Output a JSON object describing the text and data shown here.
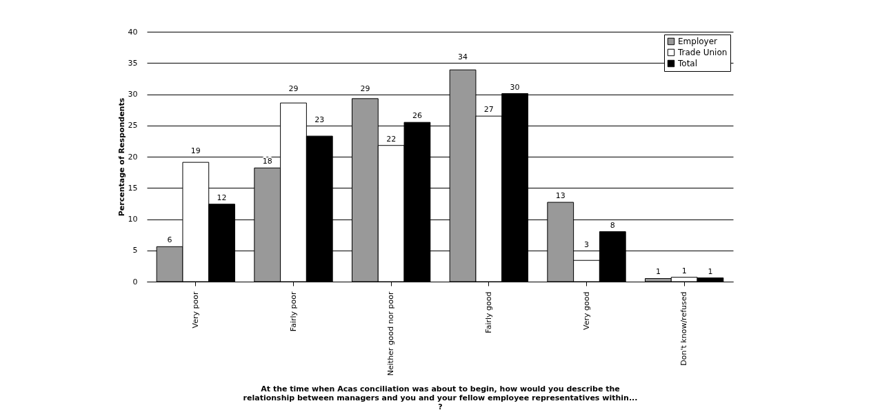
{
  "chart_data": {
    "type": "bar",
    "xlabel": "At the time when Acas conciliation was about to begin, how would you describe the relationship between managers and you and your fellow employee representatives within... ?",
    "ylabel": "Percentage of Respondents",
    "categories": [
      "Very poor",
      "Fairly poor",
      "Neither good nor poor",
      "Fairly good",
      "Very good",
      "Don't know/refused"
    ],
    "series": [
      {
        "name": "Employer",
        "color": "#999999",
        "values": [
          5.6,
          18.2,
          29.3,
          33.9,
          12.7,
          0.5
        ],
        "value_labels": [
          "6",
          "18",
          "29",
          "34",
          "13",
          "1"
        ]
      },
      {
        "name": "Trade Union",
        "color": "#ffffff",
        "values": [
          19.1,
          28.6,
          21.8,
          26.5,
          3.4,
          0.7
        ],
        "value_labels": [
          "19",
          "29",
          "22",
          "27",
          "3",
          "1"
        ]
      },
      {
        "name": "Total",
        "color": "#000000",
        "values": [
          12.4,
          23.3,
          25.5,
          30.1,
          8.0,
          0.6
        ],
        "value_labels": [
          "12",
          "23",
          "26",
          "30",
          "8",
          "1"
        ]
      }
    ],
    "ylim": [
      0,
      40
    ],
    "yticks": [
      0,
      5,
      10,
      15,
      20,
      25,
      30,
      35,
      40
    ],
    "grid": "y",
    "legend": "top right"
  }
}
